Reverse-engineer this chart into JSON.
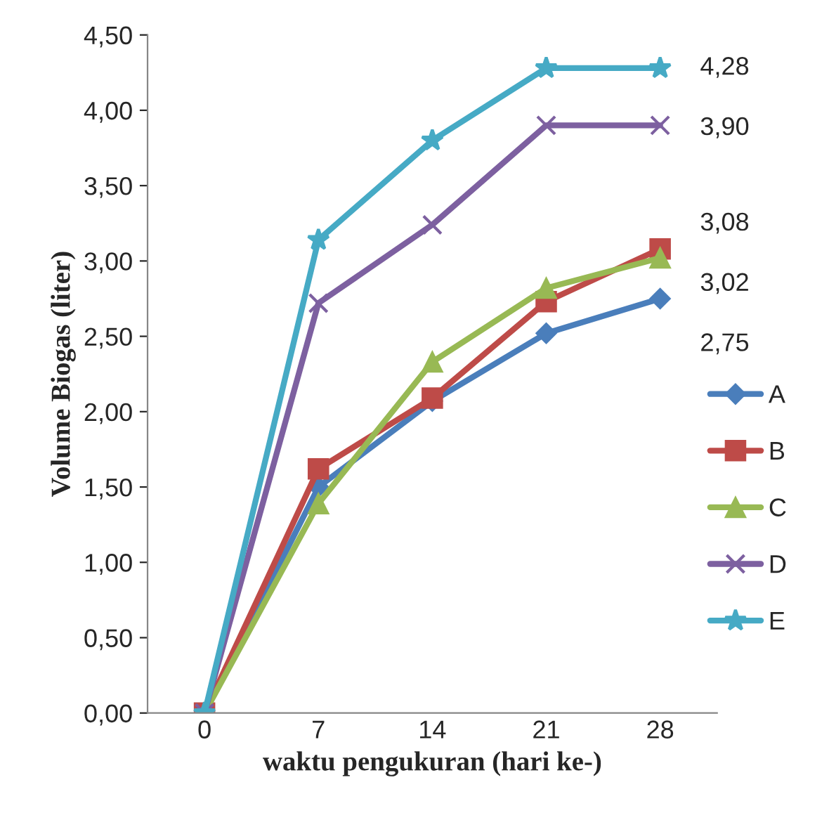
{
  "chart_data": {
    "type": "line",
    "xlabel": "waktu pengukuran (hari ke-)",
    "ylabel": "Volume Biogas (liter)",
    "categories": [
      "0",
      "7",
      "14",
      "21",
      "28"
    ],
    "ylim": [
      0,
      4.5
    ],
    "yticks": [
      {
        "value": 0,
        "label": "0,00"
      },
      {
        "value": 0.5,
        "label": "0,50"
      },
      {
        "value": 1,
        "label": "1,00"
      },
      {
        "value": 1.5,
        "label": "1,50"
      },
      {
        "value": 2,
        "label": "2,00"
      },
      {
        "value": 2.5,
        "label": "2,50"
      },
      {
        "value": 3,
        "label": "3,00"
      },
      {
        "value": 3.5,
        "label": "3,50"
      },
      {
        "value": 4,
        "label": "4,00"
      },
      {
        "value": 4.5,
        "label": "4,50"
      }
    ],
    "grid": false,
    "legend": "right",
    "series": [
      {
        "name": "A",
        "color": "#4a7ebb",
        "marker": "diamond",
        "values": [
          0,
          1.5,
          2.07,
          2.52,
          2.75
        ],
        "value_labels": [
          null,
          null,
          null,
          null,
          "2,75"
        ]
      },
      {
        "name": "B",
        "color": "#be4b48",
        "marker": "square",
        "values": [
          0,
          1.62,
          2.09,
          2.73,
          3.08
        ],
        "value_labels": [
          null,
          null,
          null,
          null,
          "3,08"
        ]
      },
      {
        "name": "C",
        "color": "#98b954",
        "marker": "triangle",
        "values": [
          0,
          1.39,
          2.33,
          2.82,
          3.02
        ],
        "value_labels": [
          null,
          null,
          null,
          null,
          "3,02"
        ]
      },
      {
        "name": "D",
        "color": "#7d60a0",
        "marker": "cross",
        "values": [
          0,
          2.72,
          3.24,
          3.9,
          3.9
        ],
        "value_labels": [
          null,
          null,
          null,
          null,
          "3,90"
        ]
      },
      {
        "name": "E",
        "color": "#46aac5",
        "marker": "star",
        "values": [
          0,
          3.14,
          3.8,
          4.28,
          4.28
        ],
        "value_labels": [
          null,
          null,
          null,
          null,
          "4,28"
        ]
      }
    ]
  }
}
